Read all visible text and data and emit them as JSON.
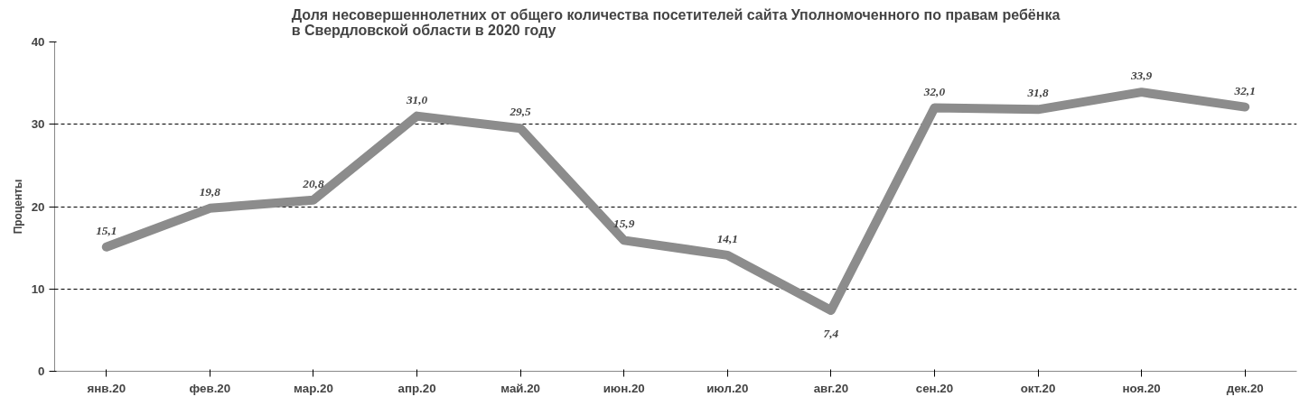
{
  "chart_data": {
    "type": "line",
    "title": "Доля несовершеннолетних от общего количества посетителей сайта Уполномоченного по правам ребёнка\nв Свердловской области в 2020 году",
    "ylabel": "Проценты",
    "categories": [
      "янв.20",
      "фев.20",
      "мар.20",
      "апр.20",
      "май.20",
      "июн.20",
      "июл.20",
      "авг.20",
      "сен.20",
      "окт.20",
      "ноя.20",
      "дек.20"
    ],
    "series": [
      {
        "color": "#8c8c8c",
        "values": [
          15.1,
          19.8,
          20.8,
          31.0,
          29.5,
          15.9,
          14.1,
          7.4,
          32.0,
          31.8,
          33.9,
          32.1
        ],
        "value_labels": [
          "15,1",
          "19,8",
          "20,8",
          "31,0",
          "29,5",
          "15,9",
          "14,1",
          "7,4",
          "32,0",
          "31,8",
          "33,9",
          "32,1"
        ]
      }
    ],
    "ylim": [
      0,
      40
    ],
    "yticks": [
      0,
      10,
      20,
      30,
      40
    ],
    "grid": "y"
  }
}
